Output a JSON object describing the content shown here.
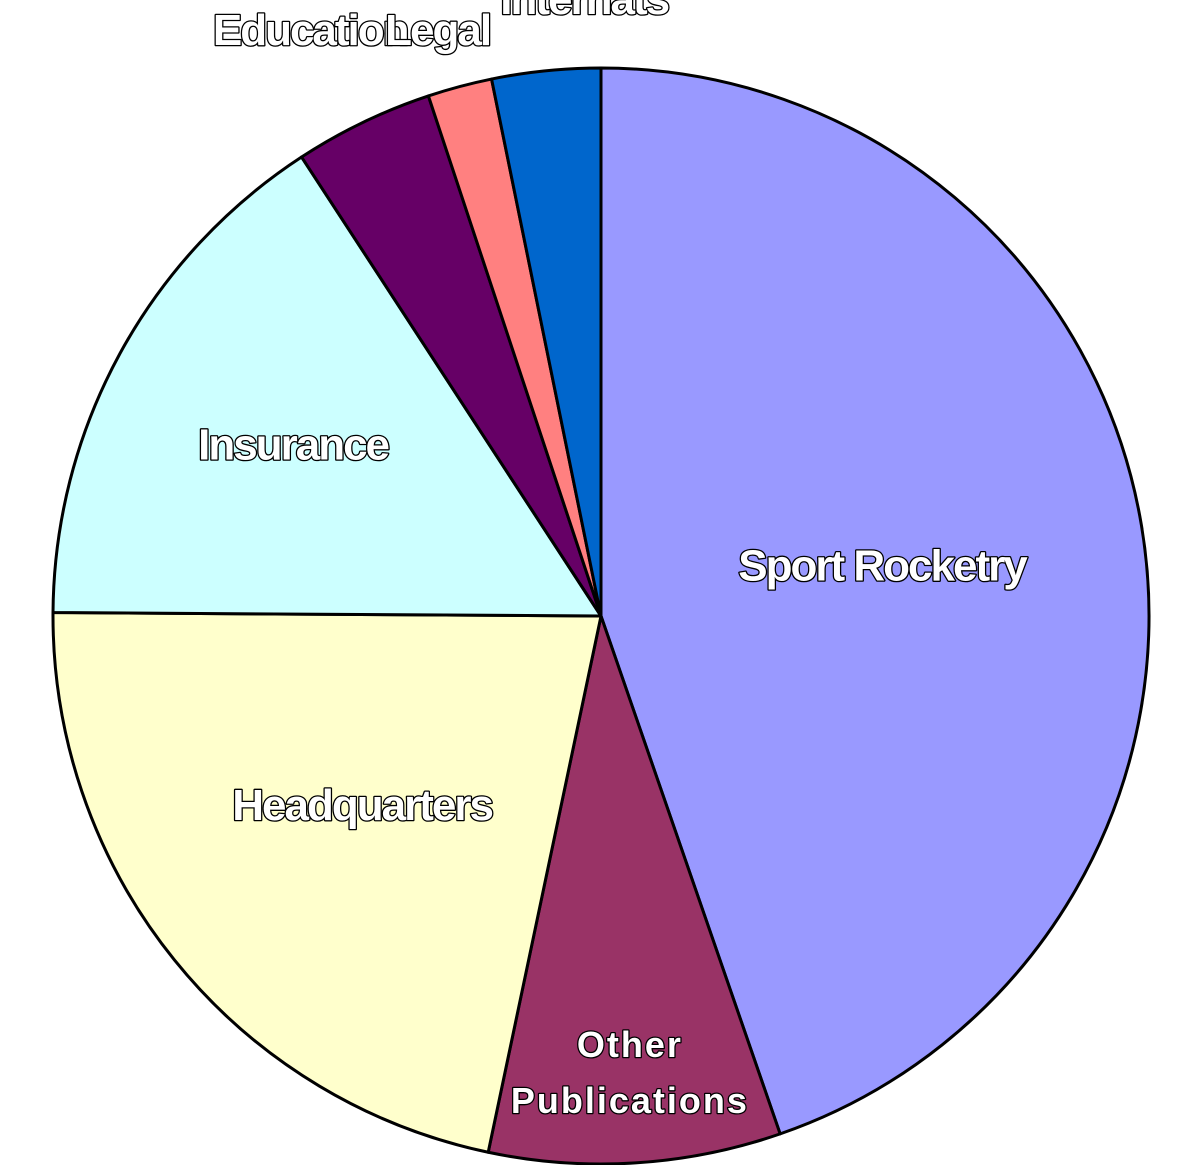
{
  "chart_data": {
    "type": "pie",
    "start_angle_deg": 0,
    "direction": "clockwise",
    "slices": [
      {
        "label": "Sport Rocketry",
        "lines": [
          "Sport Rocketry"
        ],
        "value": 44.7,
        "color": "#9999FF"
      },
      {
        "label": "Other Publications",
        "lines": [
          "Other",
          "Publications"
        ],
        "value": 8.6,
        "color": "#993366"
      },
      {
        "label": "Headquarters",
        "lines": [
          "Headquarters"
        ],
        "value": 21.8,
        "color": "#FFFFCC"
      },
      {
        "label": "Insurance",
        "lines": [
          "Insurance"
        ],
        "value": 15.7,
        "color": "#CCFFFF"
      },
      {
        "label": "Education",
        "lines": [
          "Education"
        ],
        "value": 4.1,
        "color": "#660066"
      },
      {
        "label": "Legal",
        "lines": [
          "Legal"
        ],
        "value": 1.9,
        "color": "#FF8080"
      },
      {
        "label": "Internats",
        "lines": [
          "Internats"
        ],
        "value": 3.2,
        "color": "#0066CC"
      }
    ]
  }
}
